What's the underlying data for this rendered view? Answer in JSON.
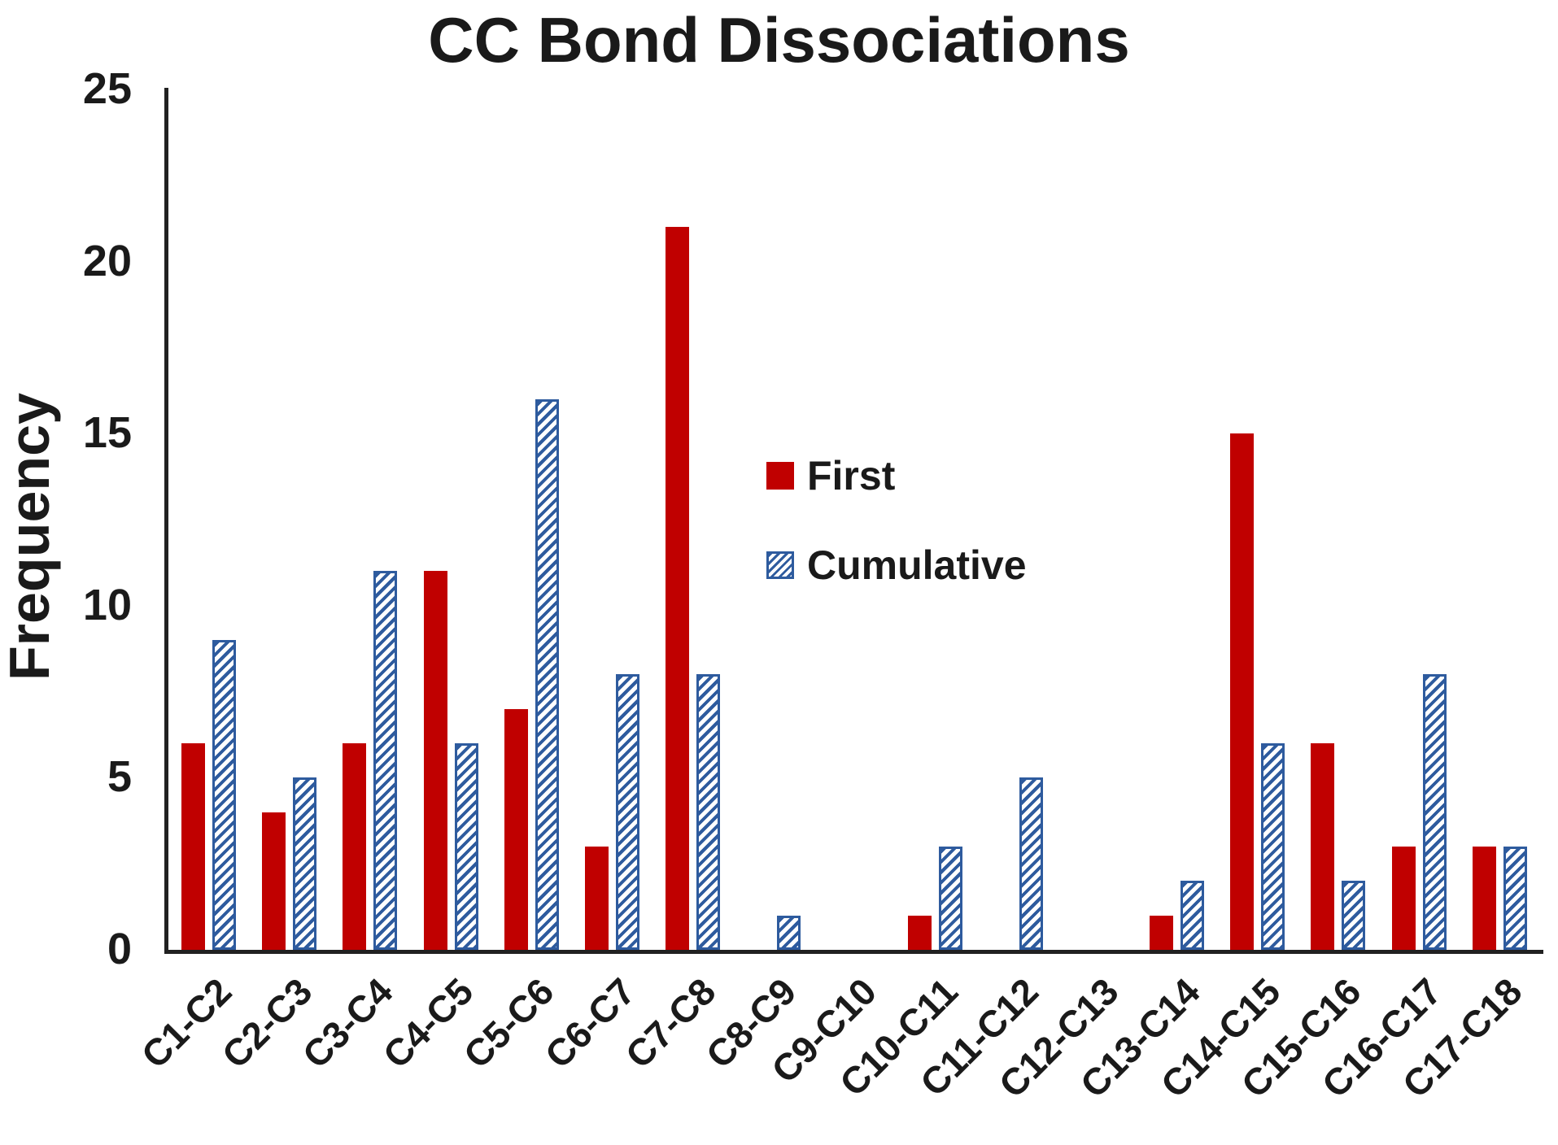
{
  "title": "CC Bond Dissociations",
  "y_axis": {
    "label": "Frequency",
    "ticks": [
      0,
      5,
      10,
      15,
      20,
      25
    ],
    "max": 25
  },
  "legend": {
    "first_label": "First",
    "cumulative_label": "Cumulative"
  },
  "colors": {
    "first": "#C00000",
    "cumulative": "#2E5B9E",
    "axis": "#212121",
    "background": "#FFFFFF"
  },
  "chart_data": {
    "type": "bar",
    "title": "CC Bond Dissociations",
    "xlabel": "",
    "ylabel": "Frequency",
    "ylim": [
      0,
      25
    ],
    "grid": false,
    "legend_position": "inside-upper-middle",
    "categories": [
      "C1-C2",
      "C2-C3",
      "C3-C4",
      "C4-C5",
      "C5-C6",
      "C6-C7",
      "C7-C8",
      "C8-C9",
      "C9-C10",
      "C10-C11",
      "C11-C12",
      "C12-C13",
      "C13-C14",
      "C14-C15",
      "C15-C16",
      "C16-C17",
      "C17-C18"
    ],
    "series": [
      {
        "name": "First",
        "color": "#C00000",
        "style": "solid",
        "values": [
          6,
          4,
          6,
          11,
          7,
          3,
          21,
          0,
          0,
          1,
          0,
          0,
          1,
          15,
          6,
          3,
          3
        ]
      },
      {
        "name": "Cumulative",
        "color": "#2E5B9E",
        "style": "hatched",
        "values": [
          9,
          5,
          11,
          6,
          16,
          8,
          8,
          1,
          0,
          3,
          5,
          0,
          2,
          6,
          2,
          8,
          3
        ]
      }
    ]
  }
}
